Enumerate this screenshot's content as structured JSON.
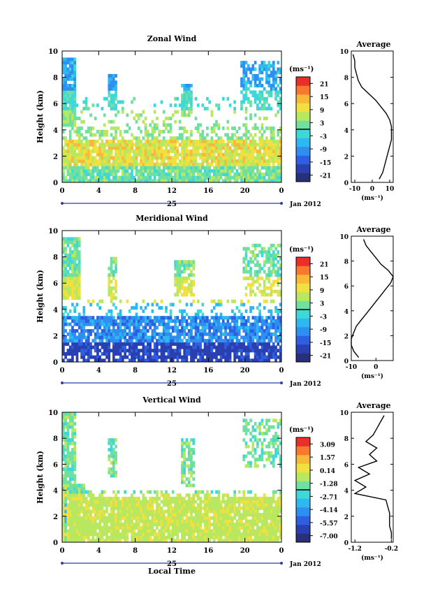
{
  "x_ticks": [
    "0",
    "4",
    "8",
    "12",
    "16",
    "20",
    "0"
  ],
  "date_ticks": [
    "25"
  ],
  "date_right": "Jan 2012",
  "x_label": "Local Time",
  "y_label": "Height (km)",
  "y_ticks": [
    "0",
    "2",
    "4",
    "6",
    "8",
    "10"
  ],
  "unit_label": "(ms⁻¹)",
  "avg_title": "Average",
  "colorscale": [
    "#2a2f7a",
    "#2a3fb0",
    "#2d5fe0",
    "#2e8ff0",
    "#2fb8f0",
    "#3fd8d8",
    "#6fe0a0",
    "#b8e860",
    "#f0e040",
    "#f8b838",
    "#f87830",
    "#e83028"
  ],
  "panels": [
    {
      "title": "Zonal Wind",
      "cbar_ticks": [
        "21",
        "15",
        "9",
        "3",
        "-3",
        "-9",
        "-15",
        "-21"
      ],
      "avg_ticks": [
        "-10",
        "0",
        "10"
      ],
      "avg_unit": "(ms⁻¹)"
    },
    {
      "title": "Meridional Wind",
      "cbar_ticks": [
        "21",
        "15",
        "9",
        "3",
        "-3",
        "-9",
        "-15",
        "-21"
      ],
      "avg_ticks": [
        "-10",
        "0"
      ],
      "avg_unit": "(ms⁻¹)"
    },
    {
      "title": "Vertical Wind",
      "cbar_ticks": [
        "3.09",
        "1.57",
        "0.14",
        "-1.28",
        "-2.71",
        "-4.14",
        "-5.57",
        "-7.00"
      ],
      "avg_ticks": [
        "-1.2",
        "-0.2"
      ],
      "avg_unit": "(ms⁻¹)"
    }
  ],
  "chart_data": [
    {
      "type": "heatmap",
      "title": "Zonal Wind",
      "x_range_hours": [
        0,
        24
      ],
      "ylim": [
        0,
        10
      ],
      "ylabel": "Height (km)",
      "colorbar_range": [
        -21,
        21
      ],
      "average_profile": {
        "title": "Average",
        "xlim": [
          -12,
          12
        ],
        "height": [
          0,
          0.5,
          1,
          1.5,
          2,
          2.5,
          3,
          3.5,
          4,
          4.5,
          5,
          5.5,
          6,
          6.5,
          7,
          7.5,
          8,
          8.5,
          9,
          9.5
        ],
        "value": [
          4,
          6,
          7,
          8,
          9,
          10,
          11,
          11,
          11,
          10,
          8,
          5,
          2,
          -2,
          -6,
          -8,
          -9,
          -10,
          -10,
          -11
        ]
      }
    },
    {
      "type": "heatmap",
      "title": "Meridional Wind",
      "x_range_hours": [
        0,
        24
      ],
      "ylim": [
        0,
        10
      ],
      "ylabel": "Height (km)",
      "colorbar_range": [
        -21,
        21
      ],
      "average_profile": {
        "title": "Average",
        "xlim": [
          -10,
          7
        ],
        "height": [
          0,
          0.5,
          1,
          1.5,
          2,
          2.5,
          3,
          3.5,
          4,
          4.5,
          5,
          5.5,
          6,
          6.5,
          7,
          7.5,
          8,
          8.5,
          9,
          9.5
        ],
        "value": [
          -7,
          -9,
          -10,
          -10,
          -9,
          -8,
          -6,
          -4,
          -2,
          0,
          2,
          4,
          6,
          7,
          5,
          2,
          0,
          -2,
          -4,
          -5
        ]
      }
    },
    {
      "type": "heatmap",
      "title": "Vertical Wind",
      "x_range_hours": [
        0,
        24
      ],
      "ylim": [
        0,
        10
      ],
      "ylabel": "Height (km)",
      "xlabel": "Local Time",
      "colorbar_range": [
        -7.0,
        3.09
      ],
      "average_profile": {
        "title": "Average",
        "xlim": [
          -1.3,
          -0.15
        ],
        "height": [
          0,
          0.5,
          1,
          1.5,
          2,
          2.5,
          3,
          3.5,
          4,
          4.5,
          5,
          5.5,
          6,
          6.5,
          7,
          7.5,
          8,
          8.5,
          9,
          9.5
        ],
        "value": [
          -0.2,
          -0.2,
          -0.25,
          -0.25,
          -0.25,
          -0.3,
          -0.35,
          -1.2,
          -0.9,
          -1.2,
          -0.8,
          -1.1,
          -0.6,
          -0.8,
          -0.6,
          -0.9,
          -0.7,
          -0.6,
          -0.5,
          -0.4
        ]
      }
    }
  ]
}
